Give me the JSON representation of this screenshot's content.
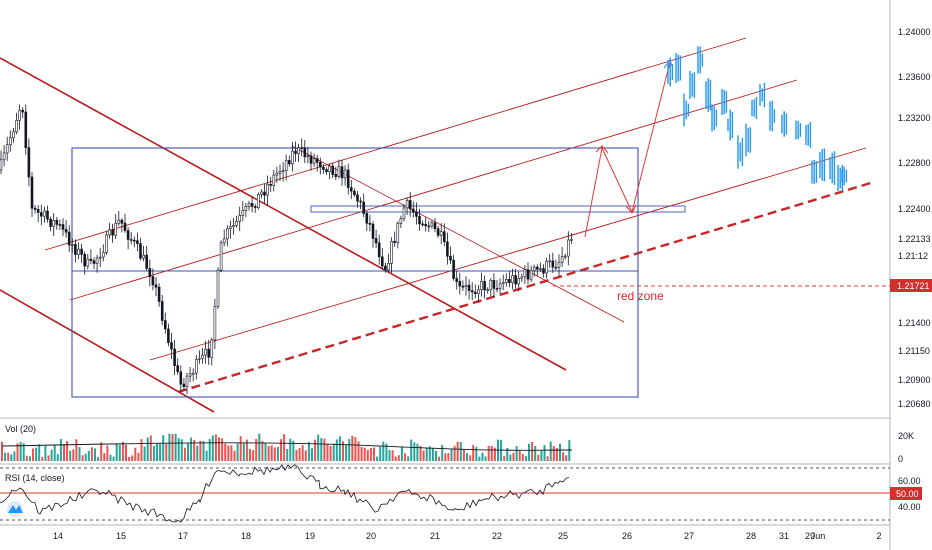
{
  "chart_data": {
    "type": "candlestick",
    "price_axis": {
      "ticks": [
        "1.24000",
        "1.23600",
        "1.23200",
        "1.22800",
        "1.22400",
        "1.22133",
        "1.21:12",
        "1.21721",
        "1.21400",
        "1.21150",
        "1.20900",
        "1.20680"
      ],
      "current_price_badge": "1.21721"
    },
    "x_axis": {
      "ticks": [
        "14",
        "15",
        "17",
        "18",
        "19",
        "20",
        "21",
        "22",
        "25",
        "26",
        "27",
        "28",
        "29",
        "31",
        "Jun",
        "2"
      ]
    },
    "annotations": {
      "zone_label": "red zone"
    },
    "volume_panel": {
      "label": "Vol (20)",
      "ticks": [
        "20K",
        "0"
      ]
    },
    "rsi_panel": {
      "label": "RSI (14, close)",
      "ticks": [
        "60.00",
        "50.00",
        "40.00"
      ],
      "current_value_badge": "50.00"
    },
    "colors": {
      "up": "#26a69a",
      "down": "#ef5350",
      "candle": "#131722",
      "projection": "#2196f3",
      "channel": "#b71c1c",
      "box": "#3f51b5",
      "support": "#c62828"
    }
  }
}
